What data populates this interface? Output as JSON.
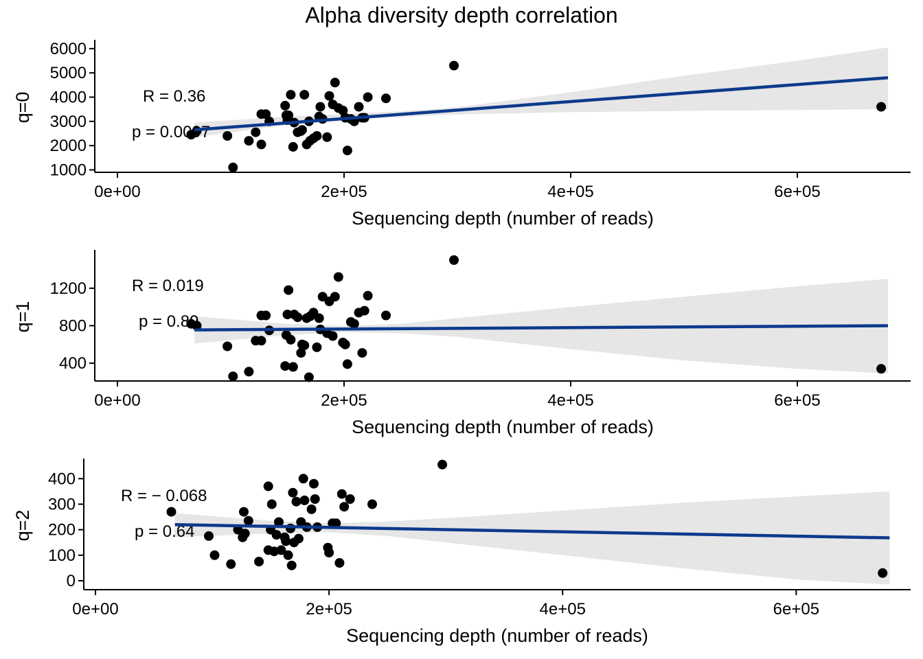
{
  "figure": {
    "title": "Alpha diversity depth correlation"
  },
  "colors": {
    "point": "#000000",
    "fit_line": "#0C3A8C",
    "confidence_band": "#E6E6E6",
    "axis": "#000000"
  },
  "chart_data": [
    {
      "type": "scatter",
      "title": "",
      "xlabel": "Sequencing depth (number of reads)",
      "ylabel": "q=0",
      "xlim": [
        -20000,
        700000
      ],
      "ylim": [
        900,
        6250
      ],
      "x_ticks": [
        0,
        200000,
        400000,
        600000
      ],
      "x_tick_labels": [
        "0e+00",
        "2e+05",
        "4e+05",
        "6e+05"
      ],
      "y_ticks": [
        1000,
        2000,
        3000,
        4000,
        5000,
        6000
      ],
      "y_tick_labels": [
        "1000",
        "2000",
        "3000",
        "4000",
        "5000",
        "6000"
      ],
      "stat_r": "R = 0.36",
      "stat_p": "p = 0.0097",
      "fit": {
        "x": [
          68000,
          680000
        ],
        "y": [
          2650,
          4800
        ]
      },
      "band": {
        "x": [
          68000,
          150000,
          200000,
          250000,
          300000,
          400000,
          500000,
          600000,
          680000
        ],
        "lower": [
          2350,
          2850,
          3050,
          3180,
          3290,
          3380,
          3430,
          3470,
          3500
        ],
        "upper": [
          2950,
          3200,
          3300,
          3420,
          3580,
          4200,
          4880,
          5500,
          6050
        ]
      },
      "points": {
        "x": [
          65000,
          70000,
          97000,
          102000,
          116000,
          122000,
          127000,
          127000,
          131000,
          134000,
          148000,
          149000,
          150000,
          151000,
          153000,
          155000,
          156000,
          159000,
          162000,
          163000,
          165000,
          167000,
          169000,
          170000,
          173000,
          176000,
          178000,
          179000,
          181000,
          185000,
          187000,
          190000,
          192000,
          195000,
          199000,
          201000,
          203000,
          206000,
          209000,
          213000,
          216000,
          218000,
          221000,
          237000,
          297000,
          674000
        ],
        "y": [
          2450,
          2600,
          2400,
          1100,
          2200,
          2550,
          2050,
          3300,
          3300,
          3000,
          3650,
          3250,
          3050,
          3250,
          4100,
          1950,
          2950,
          2550,
          2600,
          2650,
          4100,
          2050,
          3000,
          2200,
          2300,
          2400,
          3200,
          3600,
          3100,
          2350,
          4050,
          3700,
          4600,
          3550,
          3450,
          3150,
          1800,
          3100,
          3000,
          3600,
          3150,
          3150,
          4000,
          3950,
          5300,
          3600
        ]
      }
    },
    {
      "type": "scatter",
      "title": "",
      "xlabel": "Sequencing depth (number of reads)",
      "ylabel": "q=1",
      "xlim": [
        -20000,
        700000
      ],
      "ylim": [
        210,
        1580
      ],
      "x_ticks": [
        0,
        200000,
        400000,
        600000
      ],
      "x_tick_labels": [
        "0e+00",
        "2e+05",
        "4e+05",
        "6e+05"
      ],
      "y_ticks": [
        400,
        800,
        1200
      ],
      "y_tick_labels": [
        "400",
        "800",
        "1200"
      ],
      "stat_r": "R = 0.019",
      "stat_p": "p = 0.89",
      "fit": {
        "x": [
          68000,
          680000
        ],
        "y": [
          755,
          800
        ]
      },
      "band": {
        "x": [
          68000,
          150000,
          200000,
          250000,
          300000,
          400000,
          500000,
          600000,
          680000
        ],
        "lower": [
          610,
          700,
          730,
          720,
          680,
          550,
          430,
          340,
          290
        ],
        "upper": [
          900,
          820,
          800,
          820,
          880,
          1000,
          1110,
          1220,
          1300
        ]
      },
      "points": {
        "x": [
          65000,
          70000,
          97000,
          102000,
          116000,
          122000,
          127000,
          127000,
          131000,
          134000,
          148000,
          149000,
          150000,
          151000,
          153000,
          155000,
          156000,
          159000,
          162000,
          163000,
          165000,
          167000,
          169000,
          170000,
          173000,
          176000,
          178000,
          179000,
          181000,
          185000,
          187000,
          190000,
          192000,
          195000,
          199000,
          201000,
          203000,
          206000,
          209000,
          213000,
          216000,
          218000,
          221000,
          237000,
          297000,
          674000
        ],
        "y": [
          820,
          800,
          580,
          260,
          310,
          640,
          640,
          910,
          910,
          750,
          370,
          700,
          920,
          1180,
          650,
          360,
          920,
          890,
          510,
          600,
          590,
          880,
          250,
          900,
          940,
          570,
          880,
          760,
          1110,
          720,
          1060,
          690,
          1110,
          1320,
          620,
          600,
          390,
          840,
          820,
          940,
          510,
          960,
          1120,
          910,
          1500,
          340
        ]
      }
    },
    {
      "type": "scatter",
      "title": "",
      "xlabel": "Sequencing depth (number of reads)",
      "ylabel": "q=2",
      "xlim": [
        -10000,
        698000
      ],
      "ylim": [
        -35,
        468
      ],
      "x_ticks": [
        0,
        200000,
        400000,
        600000
      ],
      "x_tick_labels": [
        "0e+00",
        "2e+05",
        "4e+05",
        "6e+05"
      ],
      "y_ticks": [
        0,
        100,
        200,
        300,
        400
      ],
      "y_tick_labels": [
        "0",
        "100",
        "200",
        "300",
        "400"
      ],
      "stat_r": "R = − 0.068",
      "stat_p": "p = 0.64",
      "fit": {
        "x": [
          68000,
          680000
        ],
        "y": [
          220,
          168
        ]
      },
      "band": {
        "x": [
          68000,
          150000,
          200000,
          250000,
          300000,
          400000,
          500000,
          600000,
          680000
        ],
        "lower": [
          170,
          185,
          190,
          175,
          150,
          100,
          50,
          5,
          -15
        ],
        "upper": [
          265,
          235,
          225,
          232,
          245,
          275,
          305,
          330,
          350
        ]
      },
      "points": {
        "x": [
          65000,
          97000,
          102000,
          116000,
          122000,
          126000,
          127000,
          128000,
          131000,
          140000,
          148000,
          148000,
          150000,
          151000,
          153000,
          155000,
          157000,
          159000,
          162000,
          163000,
          165000,
          167000,
          168000,
          169000,
          170000,
          172000,
          174000,
          176000,
          178000,
          179000,
          181000,
          185000,
          187000,
          188000,
          190000,
          199000,
          200000,
          203000,
          206000,
          209000,
          211000,
          213000,
          218000,
          237000,
          297000,
          674000
        ],
        "y": [
          270,
          175,
          100,
          65,
          200,
          170,
          270,
          185,
          235,
          75,
          370,
          120,
          200,
          300,
          115,
          180,
          230,
          120,
          170,
          155,
          100,
          205,
          60,
          345,
          150,
          310,
          165,
          230,
          400,
          315,
          210,
          280,
          380,
          320,
          210,
          130,
          110,
          225,
          225,
          70,
          340,
          290,
          320,
          300,
          455,
          30
        ]
      }
    }
  ]
}
